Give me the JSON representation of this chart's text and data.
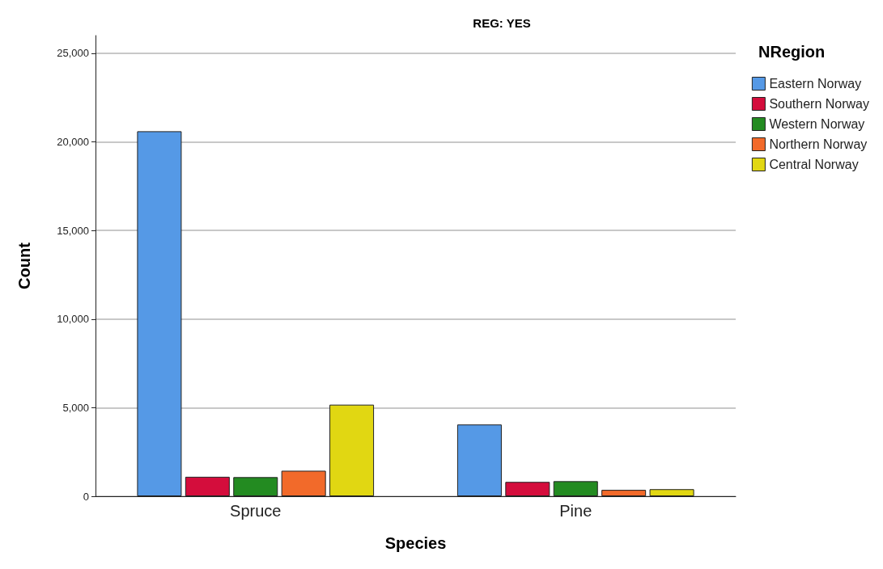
{
  "chart_data": {
    "type": "bar",
    "title": "REG: YES",
    "xlabel": "Species",
    "ylabel": "Count",
    "legend_title": "NRegion",
    "categories": [
      "Spruce",
      "Pine"
    ],
    "series": [
      {
        "name": "Eastern Norway",
        "color": "#5599e6",
        "values": [
          20600,
          4050
        ]
      },
      {
        "name": "Southern Norway",
        "color": "#d40d3c",
        "values": [
          1100,
          810
        ]
      },
      {
        "name": "Western Norway",
        "color": "#238b21",
        "values": [
          1080,
          850
        ]
      },
      {
        "name": "Northern Norway",
        "color": "#f26a2a",
        "values": [
          1440,
          360
        ]
      },
      {
        "name": "Central Norway",
        "color": "#e1d712",
        "values": [
          5170,
          400
        ]
      }
    ],
    "ylim": [
      0,
      26000
    ],
    "yticks": [
      {
        "value": 0,
        "label": "0"
      },
      {
        "value": 5000,
        "label": "5,000"
      },
      {
        "value": 10000,
        "label": "10,000"
      },
      {
        "value": 15000,
        "label": "15,000"
      },
      {
        "value": 20000,
        "label": "20,000"
      },
      {
        "value": 25000,
        "label": "25,000"
      }
    ],
    "grid": "y",
    "legend": "top right"
  }
}
